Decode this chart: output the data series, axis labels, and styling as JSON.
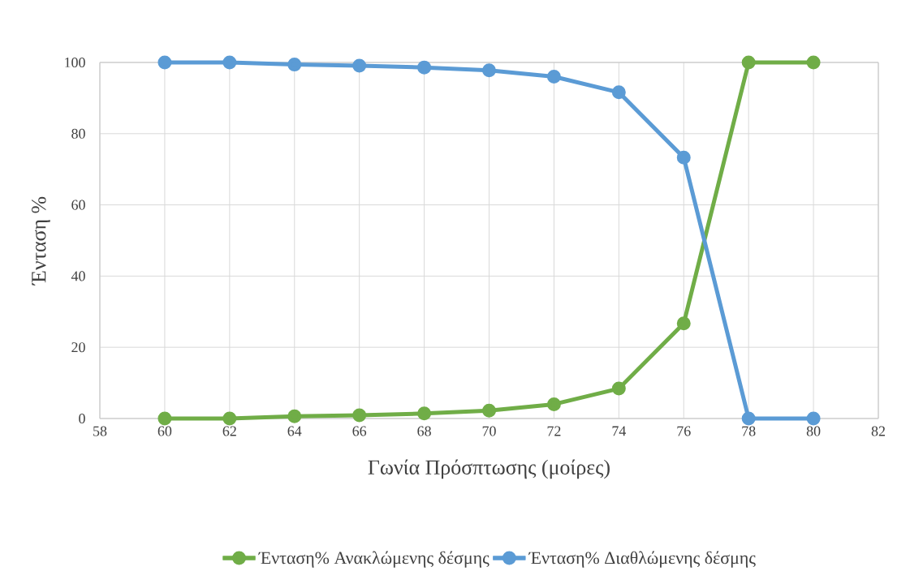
{
  "chart_data": {
    "type": "line",
    "xlabel": "Γωνία Πρόσπτωσης (μοίρες)",
    "ylabel": "Ένταση %",
    "x": [
      60,
      62,
      64,
      66,
      68,
      70,
      72,
      74,
      76,
      78,
      80
    ],
    "series": [
      {
        "name": "Ένταση% Ανακλώμενης δέσμης",
        "color": "#70ad47",
        "values": [
          0,
          0,
          0.6,
          0.9,
          1.4,
          2.2,
          4,
          8.4,
          26.7,
          100,
          100
        ]
      },
      {
        "name": "Ένταση% Διαθλώμενης δέσμης",
        "color": "#5b9bd5",
        "values": [
          100,
          100,
          99.4,
          99.1,
          98.6,
          97.8,
          96,
          91.6,
          73.3,
          0,
          0
        ]
      }
    ],
    "xlim": [
      58,
      82
    ],
    "xticks": [
      58,
      60,
      62,
      64,
      66,
      68,
      70,
      72,
      74,
      76,
      78,
      80,
      82
    ],
    "ylim": [
      0,
      100
    ],
    "yticks": [
      0,
      20,
      40,
      60,
      80,
      100
    ],
    "grid": true,
    "legend": "bottom",
    "marker": "circle",
    "line_style": "solid"
  }
}
